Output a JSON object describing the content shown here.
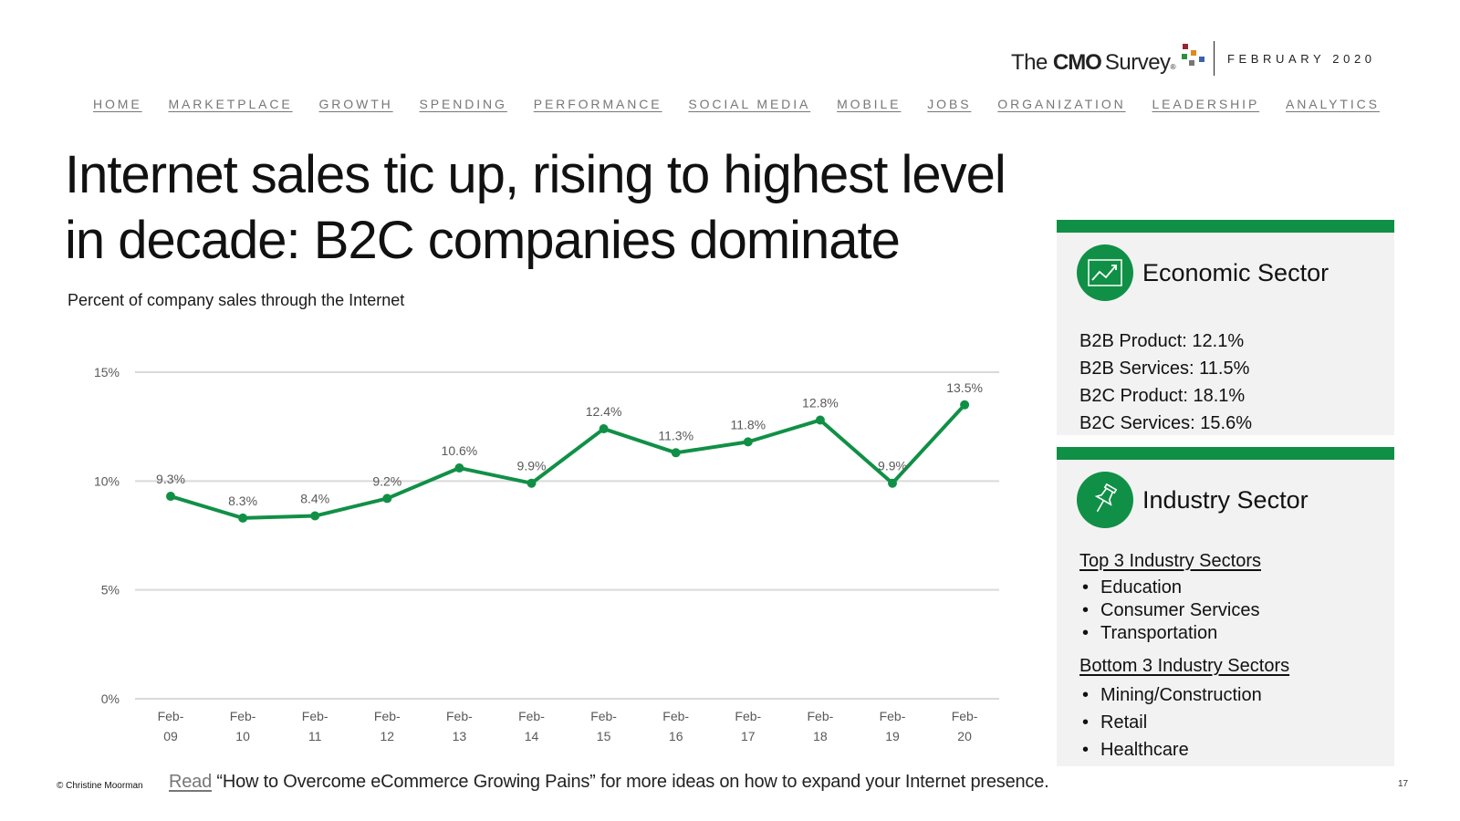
{
  "header": {
    "logo_the": "The",
    "logo_cmo": "CMO",
    "logo_survey": "Survey",
    "logo_reg": "®",
    "date": "FEBRUARY 2020",
    "dot_colors": [
      "#9b2335",
      "#e08a1e",
      "#2f8f3e",
      "#3a64a8",
      "#777777"
    ]
  },
  "nav": [
    "HOME",
    "MARKETPLACE",
    "GROWTH",
    "SPENDING",
    "PERFORMANCE",
    "SOCIAL MEDIA",
    "MOBILE",
    "JOBS",
    "ORGANIZATION",
    "LEADERSHIP",
    "ANALYTICS"
  ],
  "page": {
    "title": "Internet sales tic up, rising to highest level in decade: B2C companies dominate",
    "subtitle": "Percent of company sales through the Internet"
  },
  "chart_data": {
    "type": "line",
    "title": "Percent of company sales through the Internet",
    "categories": [
      [
        "Feb-",
        "09"
      ],
      [
        "Feb-",
        "10"
      ],
      [
        "Feb-",
        "11"
      ],
      [
        "Feb-",
        "12"
      ],
      [
        "Feb-",
        "13"
      ],
      [
        "Feb-",
        "14"
      ],
      [
        "Feb-",
        "15"
      ],
      [
        "Feb-",
        "16"
      ],
      [
        "Feb-",
        "17"
      ],
      [
        "Feb-",
        "18"
      ],
      [
        "Feb-",
        "19"
      ],
      [
        "Feb-",
        "20"
      ]
    ],
    "values": [
      9.3,
      8.3,
      8.4,
      9.2,
      10.6,
      9.9,
      12.4,
      11.3,
      11.8,
      12.8,
      9.9,
      13.5
    ],
    "data_labels": [
      "9.3%",
      "8.3%",
      "8.4%",
      "9.2%",
      "10.6%",
      "9.9%",
      "12.4%",
      "11.3%",
      "11.8%",
      "12.8%",
      "9.9%",
      "13.5%"
    ],
    "yticks": [
      0,
      5,
      10,
      15
    ],
    "ytick_labels": [
      "0%",
      "5%",
      "10%",
      "15%"
    ],
    "ylim": [
      0,
      15
    ],
    "xlabel": "",
    "ylabel": "",
    "grid": true,
    "legend": "none",
    "line_color": "#109046"
  },
  "economic": {
    "title": "Economic Sector",
    "items": [
      "B2B Product: 12.1%",
      "B2B Services: 11.5%",
      "B2C Product: 18.1%",
      "B2C Services: 15.6%"
    ]
  },
  "industry": {
    "title": "Industry Sector",
    "top_heading": "Top 3 Industry Sectors",
    "top": [
      "Education",
      "Consumer Services",
      "Transportation"
    ],
    "bottom_heading": "Bottom 3 Industry Sectors",
    "bottom": [
      "Mining/Construction",
      "Retail",
      "Healthcare"
    ]
  },
  "footer": {
    "copyright": "© Christine Moorman",
    "read_link": "Read",
    "text": " “How to Overcome eCommerce Growing Pains” for more ideas on how to expand your Internet presence.",
    "page_number": "17"
  },
  "colors": {
    "accent": "#109046",
    "panel_bg": "#f2f2f2",
    "nav_text": "#777777"
  }
}
